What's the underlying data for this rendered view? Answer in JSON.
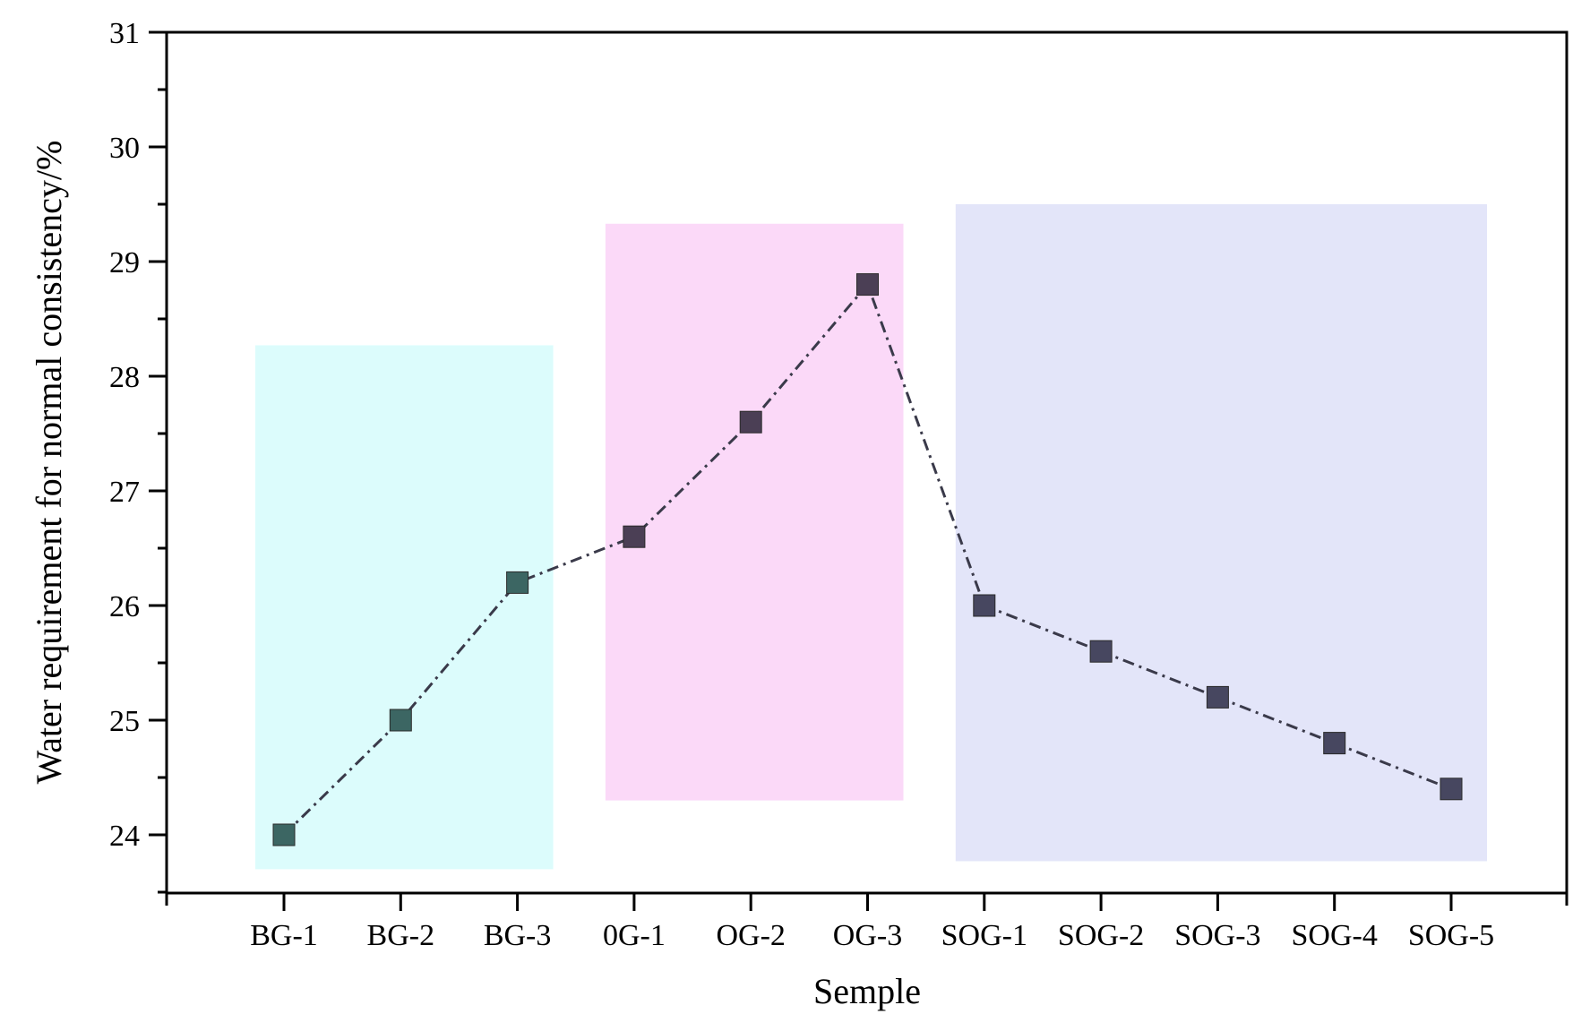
{
  "chart_data": {
    "type": "line",
    "title": "",
    "xlabel": "Semple",
    "ylabel": "Water requirement for normal consistency/%",
    "categories": [
      "BG-1",
      "BG-2",
      "BG-3",
      "0G-1",
      "OG-2",
      "OG-3",
      "SOG-1",
      "SOG-2",
      "SOG-3",
      "SOG-4",
      "SOG-5"
    ],
    "values": [
      24.0,
      25.0,
      26.2,
      26.6,
      27.6,
      28.8,
      26.0,
      25.6,
      25.2,
      24.8,
      24.4
    ],
    "ylim": [
      23.5,
      31
    ],
    "yticks": [
      24,
      25,
      26,
      27,
      28,
      29,
      30,
      31
    ],
    "grid": false,
    "line_style": "dash-dot",
    "group_bands": [
      {
        "from": "BG-1",
        "to": "BG-3",
        "ymin": 23.7,
        "ymax": 28.27,
        "color": "#dcfcfc"
      },
      {
        "from": "0G-1",
        "to": "OG-3",
        "ymin": 24.3,
        "ymax": 29.33,
        "color": "#fbd9f8"
      },
      {
        "from": "SOG-1",
        "to": "SOG-5",
        "ymin": 23.77,
        "ymax": 29.5,
        "color": "#e3e5f9"
      }
    ],
    "colors": {
      "markers": [
        "#3c6663",
        "#3c6663",
        "#3c6663",
        "#4b3f55",
        "#4b3f55",
        "#4b3f55",
        "#474760",
        "#474760",
        "#474760",
        "#474760",
        "#474760"
      ],
      "axis": "#000000"
    }
  }
}
